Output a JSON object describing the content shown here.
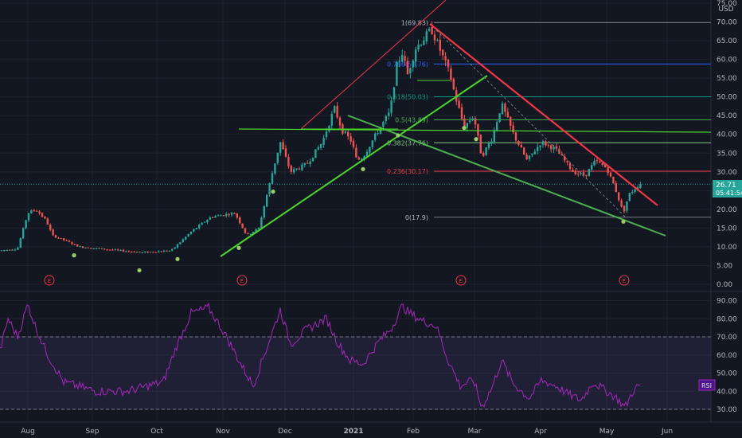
{
  "chart_data": {
    "type": "candlestick",
    "symbol_currency": "USD",
    "price_axis": {
      "ticks": [
        "75.00",
        "70.00",
        "65.00",
        "60.00",
        "55.00",
        "50.00",
        "45.00",
        "40.00",
        "35.00",
        "30.00",
        "25.00",
        "20.00",
        "15.00",
        "10.00",
        "5.00",
        "0.00"
      ],
      "range": [
        0,
        75
      ]
    },
    "rsi_axis": {
      "ticks": [
        "90.00",
        "80.00",
        "70.00",
        "60.00",
        "50.00",
        "40.00",
        "30.00"
      ],
      "range": [
        25,
        95
      ],
      "upper_band": 70,
      "lower_band": 30
    },
    "time_axis": [
      "Aug",
      "Sep",
      "Oct",
      "Nov",
      "Dec",
      "2021",
      "Feb",
      "Mar",
      "Apr",
      "May",
      "Jun"
    ],
    "last_price_label": "26.71",
    "countdown_label": "05:41:54",
    "rsi_label": "RSI",
    "earnings_marker_label": "E",
    "fibonacci": [
      {
        "label": "1(69.83)",
        "value": 69.83,
        "color": "#787b86"
      },
      {
        "label": "0.786(58.76)",
        "value": 58.76,
        "color": "#2962ff"
      },
      {
        "label": "0.618(50.03)",
        "value": 50.03,
        "color": "#089981"
      },
      {
        "label": "0.5(43.89)",
        "value": 43.89,
        "color": "#4caf50"
      },
      {
        "label": "0.382(37.76)",
        "value": 37.76,
        "color": "#81c784"
      },
      {
        "label": "0.236(30.17)",
        "value": 30.17,
        "color": "#f23645"
      },
      {
        "label": "0(17.9)",
        "value": 17.9,
        "color": "#787b86"
      }
    ],
    "colors": {
      "up": "#26a69a",
      "down": "#ef5350",
      "rsi": "#9c27b0",
      "trend_green": "#4cd62b",
      "trend_red": "#f23645",
      "falling_wedge": "#4caf50",
      "last_price": "#26a69a"
    }
  }
}
